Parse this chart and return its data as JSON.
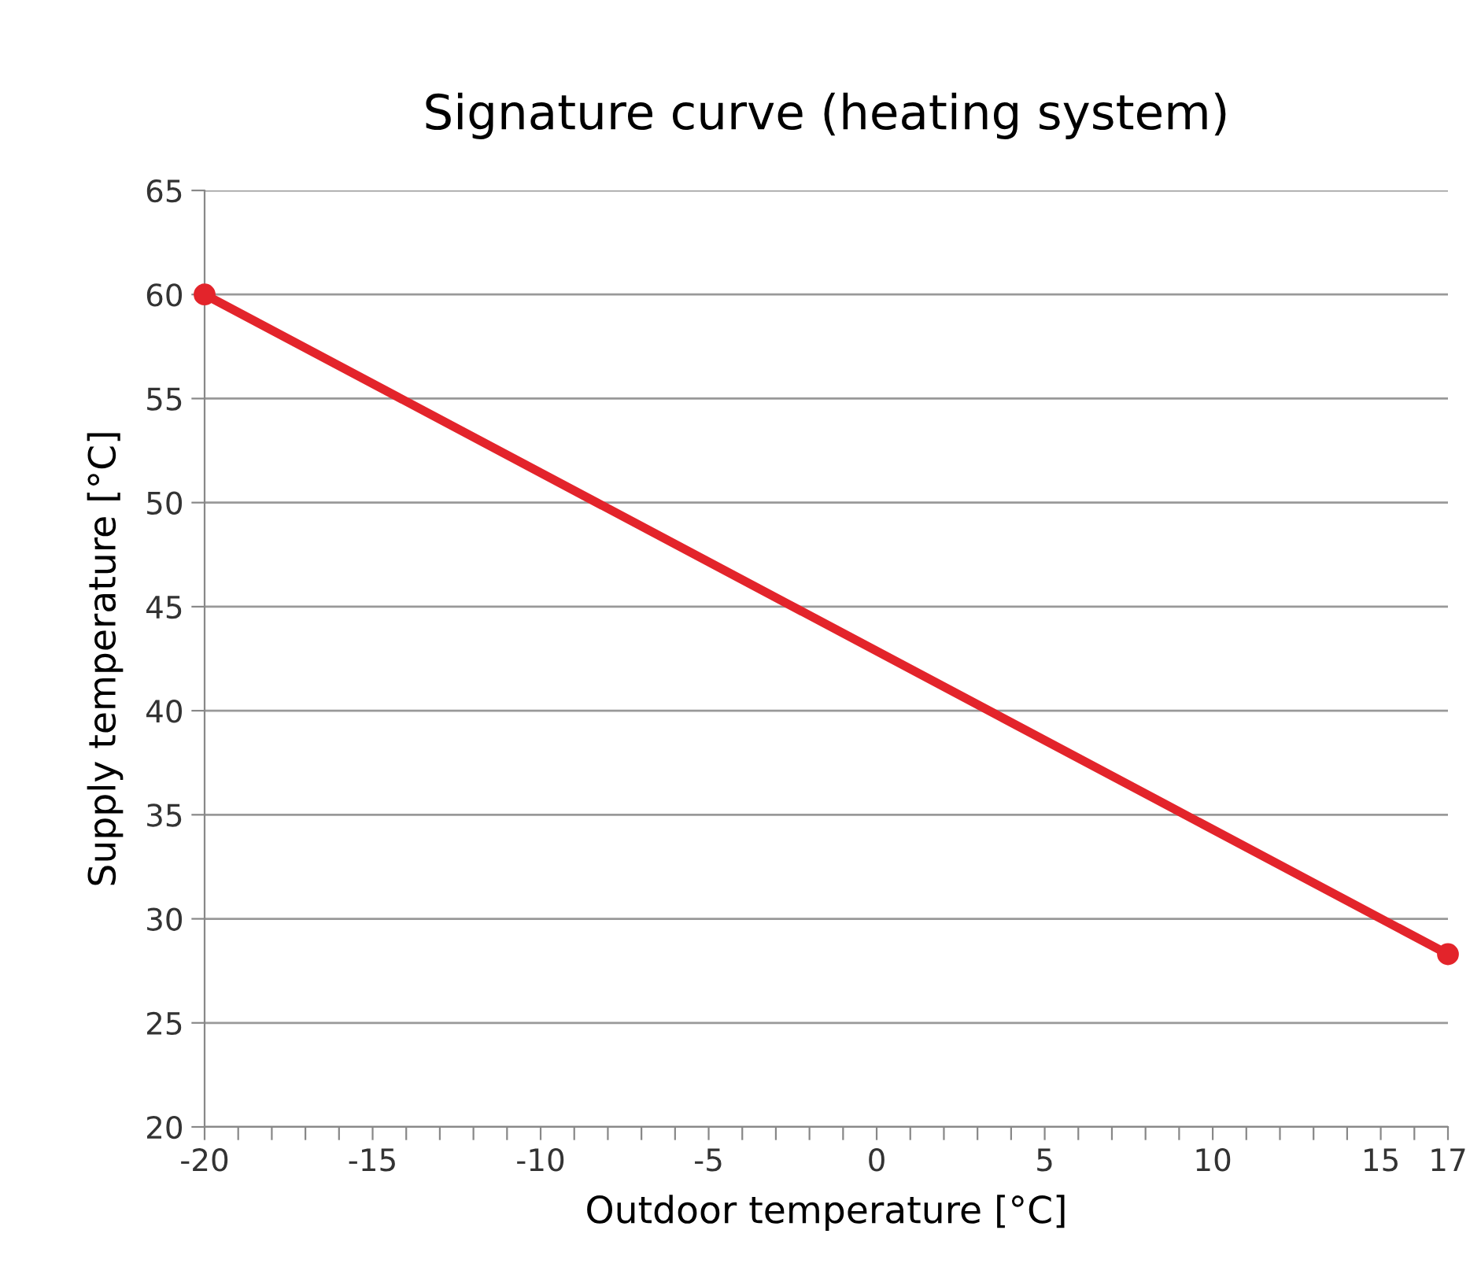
{
  "chart_data": {
    "type": "line",
    "title": "Signature curve (heating system)",
    "xlabel": "Outdoor temperature [°C]",
    "ylabel": "Supply temperature [°C]",
    "series": [
      {
        "color": "#e3242b",
        "x": [
          -20,
          17
        ],
        "values": [
          60,
          28.3
        ]
      }
    ],
    "marker": "circle",
    "line_style": "solid",
    "grid": "y",
    "legend": false,
    "xlim": [
      -20,
      17
    ],
    "ylim": [
      20,
      65
    ],
    "xticks": [
      -20,
      {
        "value": -19,
        "label": null
      },
      {
        "value": -18,
        "label": null
      },
      {
        "value": -17,
        "label": null
      },
      {
        "value": -16,
        "label": null
      },
      -15,
      {
        "value": -14,
        "label": null
      },
      {
        "value": -13,
        "label": null
      },
      {
        "value": -12,
        "label": null
      },
      {
        "value": -11,
        "label": null
      },
      -10,
      {
        "value": -9,
        "label": null
      },
      {
        "value": -8,
        "label": null
      },
      {
        "value": -7,
        "label": null
      },
      {
        "value": -6,
        "label": null
      },
      -5,
      {
        "value": -4,
        "label": null
      },
      {
        "value": -3,
        "label": null
      },
      {
        "value": -2,
        "label": null
      },
      {
        "value": -1,
        "label": null
      },
      0,
      {
        "value": 1,
        "label": null
      },
      {
        "value": 2,
        "label": null
      },
      {
        "value": 3,
        "label": null
      },
      {
        "value": 4,
        "label": null
      },
      5,
      {
        "value": 6,
        "label": null
      },
      {
        "value": 7,
        "label": null
      },
      {
        "value": 8,
        "label": null
      },
      {
        "value": 9,
        "label": null
      },
      10,
      {
        "value": 11,
        "label": null
      },
      {
        "value": 12,
        "label": null
      },
      {
        "value": 13,
        "label": null
      },
      {
        "value": 14,
        "label": null
      },
      15,
      {
        "value": 16,
        "label": null
      },
      17
    ],
    "yticks": [
      20,
      25,
      30,
      35,
      40,
      45,
      50,
      55,
      60,
      65
    ]
  }
}
